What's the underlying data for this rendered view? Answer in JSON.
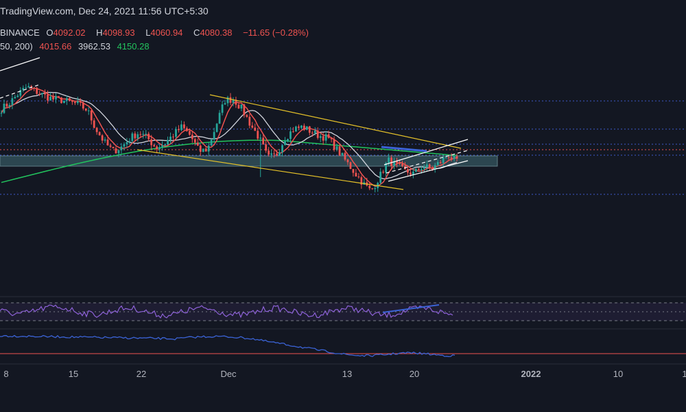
{
  "header": {
    "watermark": "TradingView.com, Dec 24, 2021 11:56 UTC+5:30",
    "exchange": "BINANCE",
    "open_label": "O",
    "open": "4092.02",
    "high_label": "H",
    "high": "4098.93",
    "low_label": "L",
    "low": "4060.94",
    "close_label": "C",
    "close": "4080.38",
    "change": "−11.65 (−0.28%)",
    "ma_params": "50, 200)",
    "ma_values": [
      "4015.66",
      "3962.53",
      "4150.28"
    ]
  },
  "colors": {
    "background": "#131722",
    "up": "#26a69a",
    "down": "#ef5350",
    "ma_fast": "#ef5350",
    "ma_mid": "#d1d4dc",
    "ma_slow": "#22c55e",
    "channel": "#e6c229",
    "rsi": "#8e62d9",
    "lower_indicator": "#3b63d6",
    "zone": "#2c4650"
  },
  "chart_data": {
    "type": "candlestick",
    "ticker_source": "BINANCE",
    "x_axis_ticks": [
      "8",
      "15",
      "22",
      "Dec",
      "13",
      "20",
      "2022",
      "10",
      "1"
    ],
    "last_ohlc": {
      "open": 4092.02,
      "high": 4098.93,
      "low": 4060.94,
      "close": 4080.38,
      "change": -11.65,
      "change_pct": -0.28
    },
    "moving_averages": [
      {
        "value": 4015.66
      },
      {
        "value": 3962.53
      },
      {
        "value": 4150.28
      }
    ],
    "price_path_approx": [
      4560,
      4620,
      4700,
      4760,
      4720,
      4680,
      4650,
      4640,
      4620,
      4600,
      4550,
      4380,
      4260,
      4180,
      4220,
      4300,
      4350,
      4300,
      4210,
      4250,
      4330,
      4400,
      4320,
      4180,
      4200,
      4420,
      4640,
      4650,
      4560,
      4420,
      4300,
      4120,
      4150,
      4300,
      4380,
      4400,
      4360,
      4320,
      4300,
      4200,
      4100,
      4000,
      3900,
      3820,
      3950,
      4100,
      4050,
      4000,
      3980,
      4050,
      4020,
      4080,
      4150,
      4080
    ],
    "grid": false,
    "legend": "top-left"
  }
}
